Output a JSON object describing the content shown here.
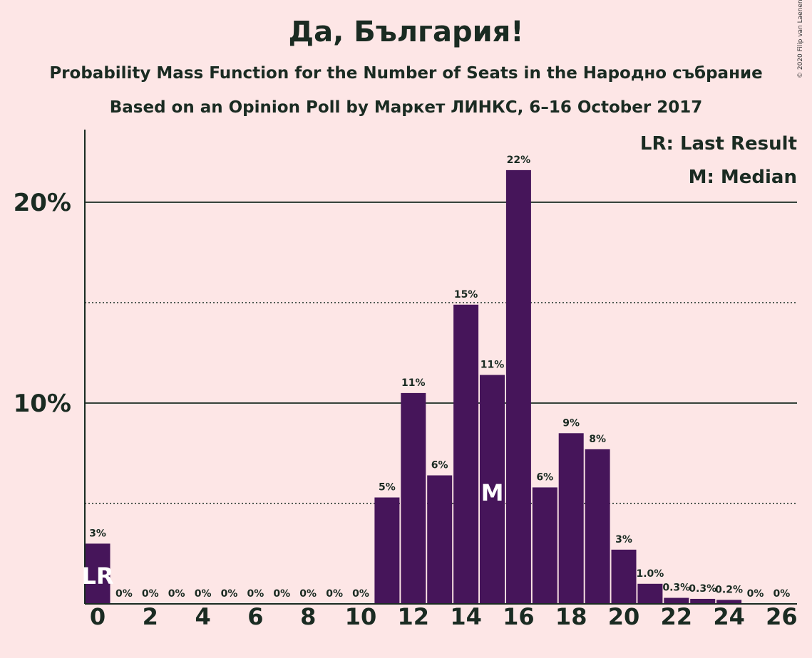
{
  "title": "Да, България!",
  "subtitle": "Probability Mass Function for the Number of Seats in the Народно събрание",
  "subtitle2": "Based on an Opinion Poll by Маркет ЛИНКС, 6–16 October 2017",
  "copyright": "© 2020 Filip van Laenen",
  "legend": {
    "last_result": "LR: Last Result",
    "median": "M: Median"
  },
  "colors": {
    "background": "#fde6e6",
    "bar": "#46155a",
    "text": "#1a2b22"
  },
  "chart_data": {
    "type": "bar",
    "title": "Да, България!",
    "xlabel": "",
    "ylabel": "",
    "categories": [
      0,
      1,
      2,
      3,
      4,
      5,
      6,
      7,
      8,
      9,
      10,
      11,
      12,
      13,
      14,
      15,
      16,
      17,
      18,
      19,
      20,
      21,
      22,
      23,
      24,
      25,
      26
    ],
    "values": [
      3.0,
      0,
      0,
      0,
      0,
      0,
      0,
      0,
      0,
      0,
      0,
      5.3,
      10.5,
      6.4,
      14.9,
      11.4,
      21.6,
      5.8,
      8.5,
      7.7,
      2.7,
      1.0,
      0.3,
      0.25,
      0.2,
      0,
      0
    ],
    "labels": [
      "3%",
      "0%",
      "0%",
      "0%",
      "0%",
      "0%",
      "0%",
      "0%",
      "0%",
      "0%",
      "0%",
      "5%",
      "11%",
      "6%",
      "15%",
      "11%",
      "22%",
      "6%",
      "9%",
      "8%",
      "3%",
      "1.0%",
      "0.3%",
      "0.3%",
      "0.2%",
      "0%",
      "0%"
    ],
    "x_tick_labels": [
      "0",
      "2",
      "4",
      "6",
      "8",
      "10",
      "12",
      "14",
      "16",
      "18",
      "20",
      "22",
      "24",
      "26"
    ],
    "y_ticks": [
      {
        "value": 10,
        "label": "10%"
      },
      {
        "value": 20,
        "label": "20%"
      }
    ],
    "y_dotted_gridlines": [
      5,
      15
    ],
    "ylim": [
      0,
      23.6
    ],
    "unit": "%",
    "last_result": {
      "seats": 0,
      "marker": "LR"
    },
    "median": {
      "seats": 15,
      "marker": "M"
    },
    "legend_placement": "top-right"
  }
}
